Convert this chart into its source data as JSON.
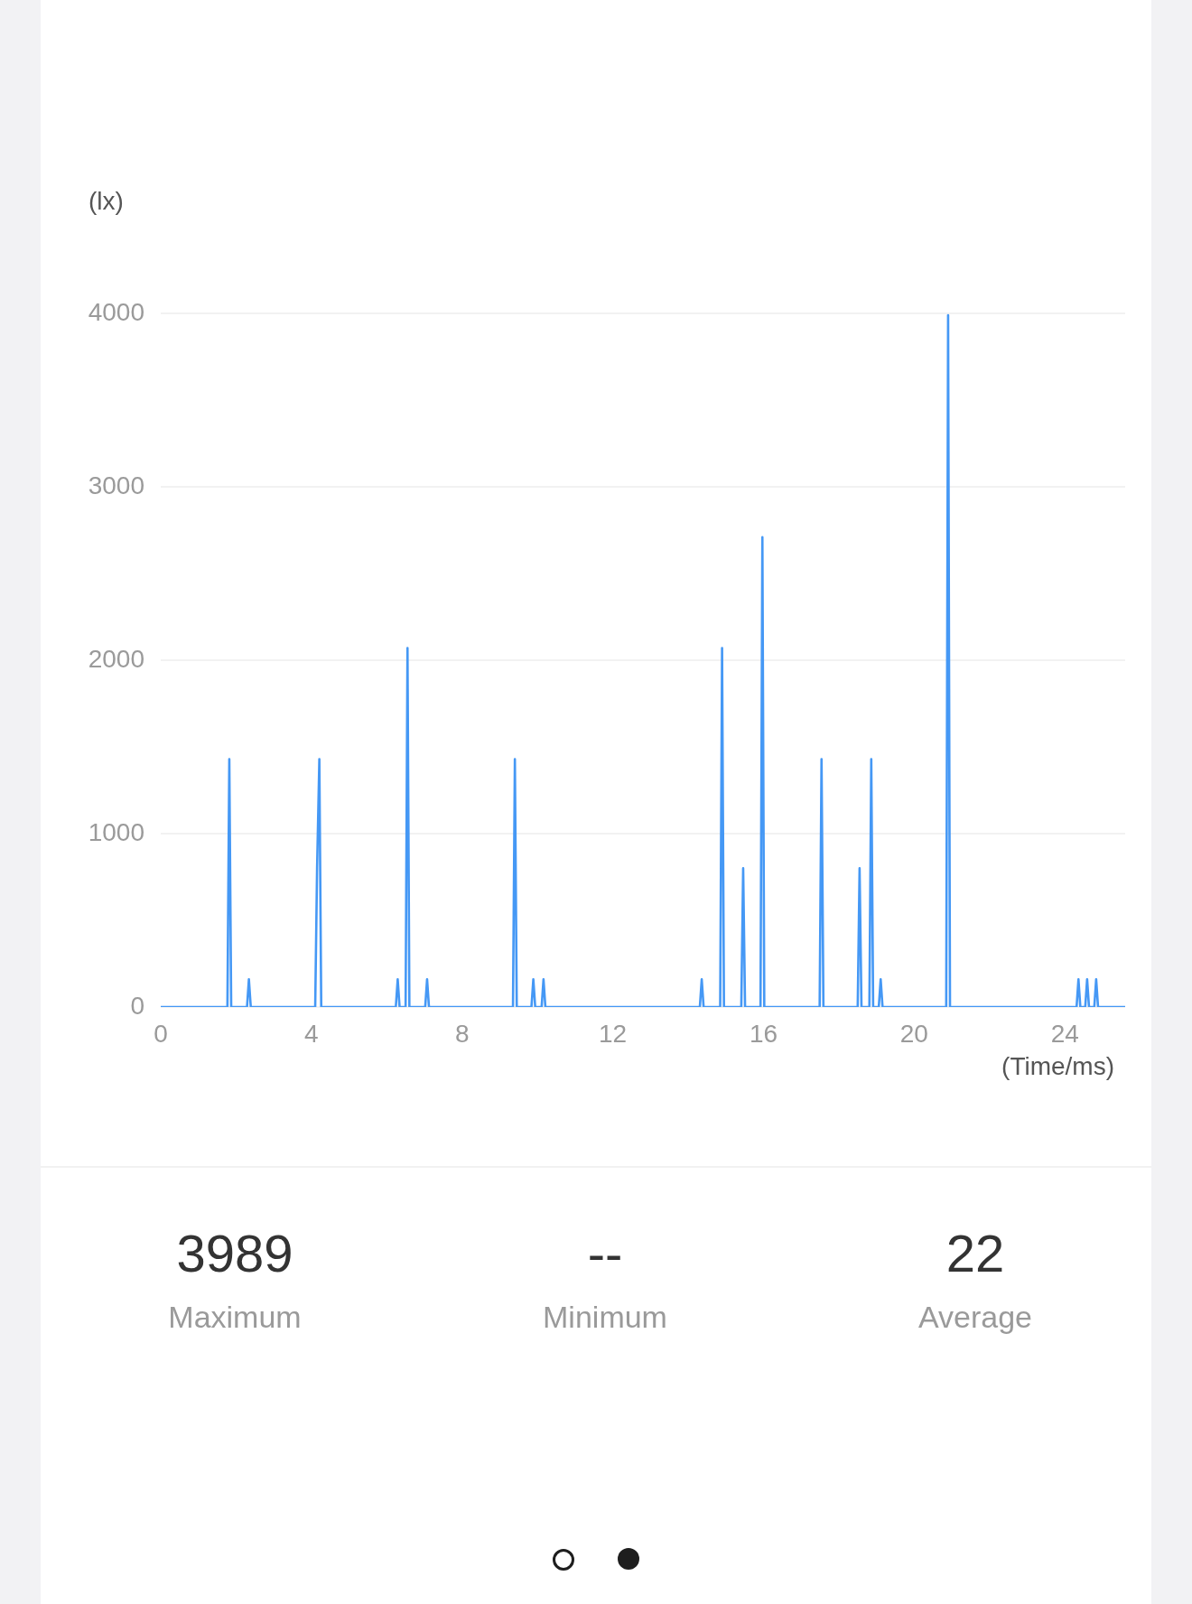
{
  "chart_data": [
    {
      "type": "line",
      "xlabel": "(Time/ms)",
      "ylabel": "(lx)",
      "color": "#4598f5",
      "marker": "none",
      "line_style": "solid",
      "grid": "y",
      "x": [
        0,
        1.77,
        1.82,
        1.87,
        2.29,
        2.34,
        2.39,
        4.1,
        4.15,
        4.21,
        4.26,
        6.24,
        6.29,
        6.34,
        6.5,
        6.55,
        6.6,
        7.02,
        7.07,
        7.12,
        9.35,
        9.4,
        9.45,
        9.84,
        9.89,
        9.94,
        10.11,
        10.16,
        10.21,
        14.31,
        14.36,
        14.41,
        14.85,
        14.9,
        14.95,
        15.41,
        15.46,
        15.51,
        15.92,
        15.97,
        16.02,
        17.49,
        17.54,
        17.59,
        18.5,
        18.55,
        18.6,
        18.81,
        18.86,
        18.91,
        19.06,
        19.11,
        19.16,
        20.85,
        20.9,
        20.95,
        24.31,
        24.36,
        24.41,
        24.54,
        24.59,
        24.64,
        24.78,
        24.83,
        24.88,
        25.6
      ],
      "values": [
        0,
        0,
        1430,
        0,
        0,
        160,
        0,
        0,
        800,
        1430,
        0,
        0,
        160,
        0,
        0,
        2070,
        0,
        0,
        160,
        0,
        0,
        1430,
        0,
        0,
        160,
        0,
        0,
        160,
        0,
        0,
        160,
        0,
        0,
        2070,
        0,
        0,
        800,
        0,
        0,
        2710,
        0,
        0,
        1430,
        0,
        0,
        800,
        0,
        0,
        1430,
        0,
        0,
        160,
        0,
        0,
        3989,
        0,
        0,
        160,
        0,
        0,
        160,
        0,
        0,
        160,
        0,
        0
      ],
      "xlim": [
        0,
        25.6
      ],
      "xticks": [
        0,
        4,
        8,
        12,
        16,
        20,
        24
      ],
      "ylim": [
        0,
        4000
      ],
      "yticks": [
        0,
        1000,
        2000,
        3000,
        4000
      ]
    },
    {
      "type": "other",
      "categories": [
        "Maximum",
        "Minimum",
        "Average"
      ],
      "value_labels": [
        "3989",
        "--",
        "22"
      ]
    }
  ]
}
